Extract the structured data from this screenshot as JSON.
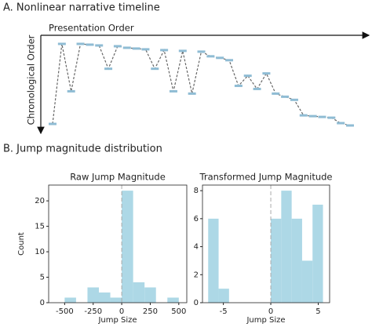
{
  "chart_data": [
    {
      "type": "line",
      "title": "A. Nonlinear narrative timeline",
      "x_label": "Presentation Order",
      "y_label": "Chronological Order",
      "values": [
        107,
        4,
        65,
        4,
        5,
        6,
        36,
        7,
        9,
        10,
        11,
        36,
        12,
        65,
        13,
        68,
        14,
        20,
        22,
        25,
        58,
        45,
        62,
        42,
        68,
        72,
        76,
        96,
        97,
        98,
        99,
        106,
        109
      ],
      "ylim": [
        0,
        110
      ],
      "y_inverted": true,
      "color": "#8fbcd4",
      "line_color": "#666666"
    },
    {
      "type": "histogram",
      "section_title": "B. Jump magnitude distribution",
      "title": "Raw Jump Magnitude",
      "x_label": "Jump Size",
      "y_label": "Count",
      "bins": [
        -500,
        -400,
        -300,
        -200,
        -100,
        0,
        100,
        200,
        300,
        400,
        500
      ],
      "values": [
        1,
        0,
        3,
        2,
        1,
        22,
        4,
        3,
        0,
        1
      ],
      "xlim": [
        -640,
        570
      ],
      "ylim": [
        0,
        23.1
      ],
      "xticks": [
        -500,
        -250,
        0,
        250,
        500
      ],
      "yticks": [
        0,
        5,
        10,
        15,
        20
      ],
      "vline": 0,
      "color": "#add8e6"
    },
    {
      "type": "histogram",
      "title": "Transformed Jump Magnitude",
      "x_label": "Jump Size",
      "bins": [
        -6.6,
        -5.5,
        -4.4,
        -3.3,
        -2.2,
        -1.1,
        0,
        1.1,
        2.2,
        3.3,
        4.4,
        5.5
      ],
      "values": [
        6,
        1,
        0,
        0,
        0,
        0,
        6,
        8,
        6,
        3,
        7
      ],
      "xlim": [
        -7.2,
        6.2
      ],
      "ylim": [
        0,
        8.4
      ],
      "xticks": [
        -5,
        0,
        5
      ],
      "yticks": [
        0,
        2,
        4,
        6,
        8
      ],
      "vline": 0,
      "color": "#add8e6"
    }
  ]
}
